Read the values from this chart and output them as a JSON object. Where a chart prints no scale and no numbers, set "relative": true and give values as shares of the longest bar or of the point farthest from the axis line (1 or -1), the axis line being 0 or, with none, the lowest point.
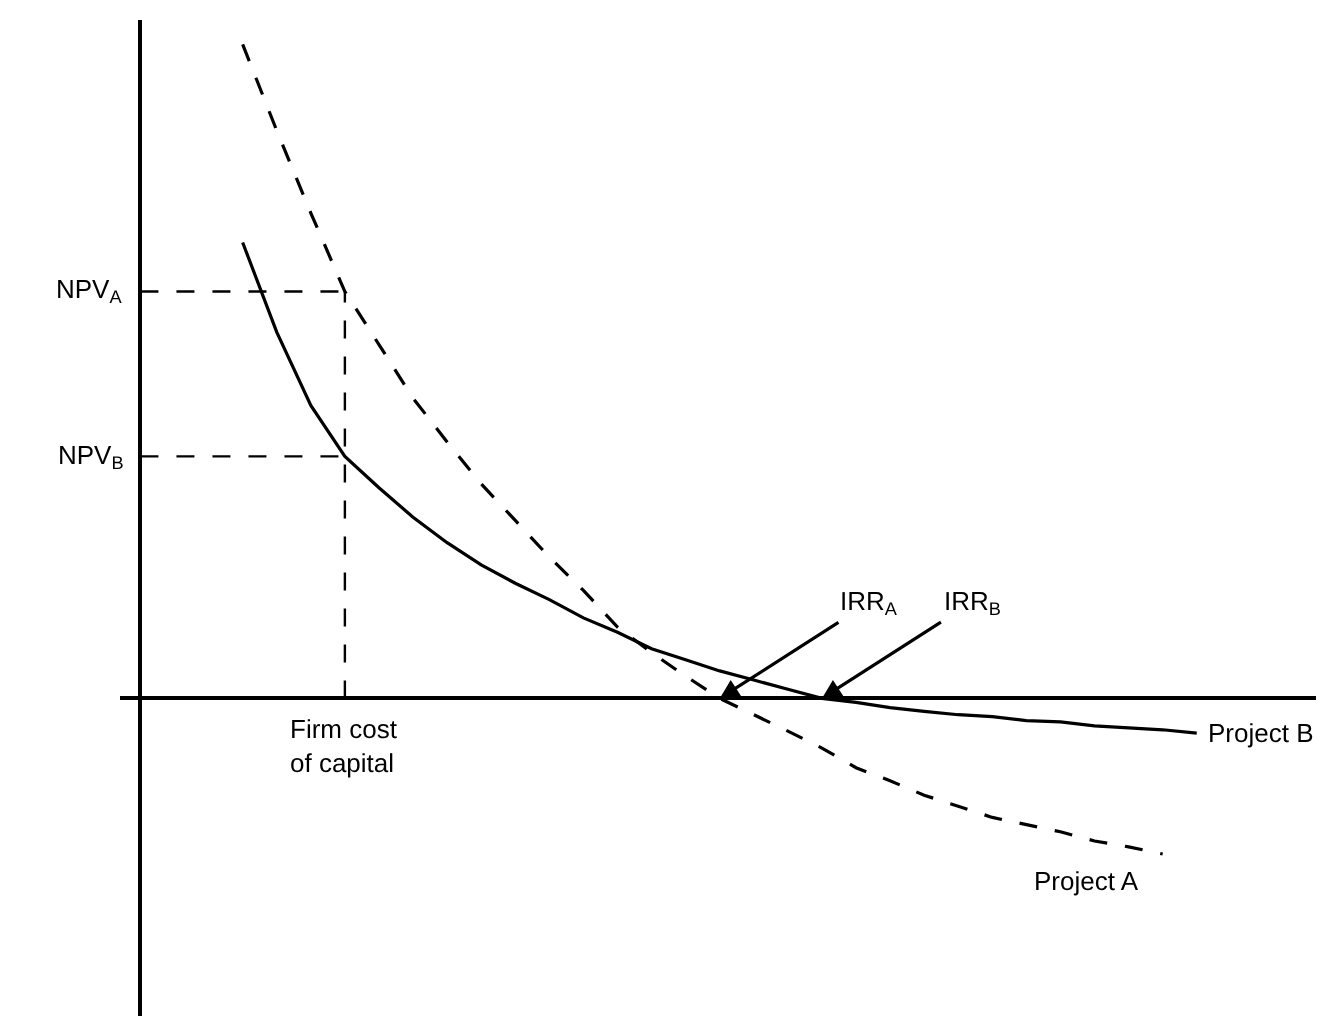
{
  "chart_data": {
    "type": "line",
    "relative": true,
    "tick_labels": false,
    "categories": [
      null,
      null,
      null,
      null,
      null,
      null,
      null,
      null,
      null,
      null,
      null,
      null,
      null,
      null,
      null,
      null,
      null,
      null,
      null,
      null,
      null,
      null,
      null,
      null,
      null,
      null,
      null,
      null,
      null,
      null,
      null,
      null,
      null,
      null,
      null
    ],
    "series": [
      {
        "name": "Project B",
        "color": "#000000",
        "line_style": "solid",
        "values": [
          null,
          null,
          null,
          0.697,
          0.56,
          0.448,
          0.37,
          0.322,
          0.277,
          0.238,
          0.204,
          0.176,
          0.151,
          0.123,
          0.101,
          0.076,
          0.059,
          0.042,
          0.028,
          0.014,
          0,
          -0.006,
          -0.014,
          -0.02,
          -0.025,
          -0.028,
          -0.034,
          -0.036,
          -0.042,
          -0.045,
          -0.048,
          -0.053,
          null,
          null,
          null
        ]
      },
      {
        "name": "Project A",
        "color": "#000000",
        "line_style": "dashed",
        "values": [
          null,
          null,
          null,
          1.0,
          0.868,
          0.742,
          0.622,
          0.541,
          0.459,
          0.392,
          0.328,
          0.272,
          0.216,
          0.165,
          0.109,
          0.07,
          0.034,
          0,
          -0.025,
          -0.05,
          -0.076,
          -0.106,
          -0.126,
          -0.148,
          -0.165,
          -0.182,
          -0.193,
          -0.204,
          -0.218,
          -0.227,
          -0.238,
          null,
          null,
          null,
          null
        ]
      }
    ],
    "ref_lines": [
      {
        "axis": "y",
        "value": 0.622,
        "label": "NPV$_{A}$",
        "line_style": "dashed",
        "color": "#000000"
      },
      {
        "axis": "y",
        "value": 0.37,
        "label": "NPV$_{B}$",
        "line_style": "dashed",
        "color": "#000000"
      },
      {
        "axis": "x",
        "label": "Firm cost\nof capital",
        "line_style": "dashed",
        "color": "#000000"
      }
    ],
    "annotations": [
      "IRR$_{A}$",
      "IRR$_{B}$"
    ]
  }
}
